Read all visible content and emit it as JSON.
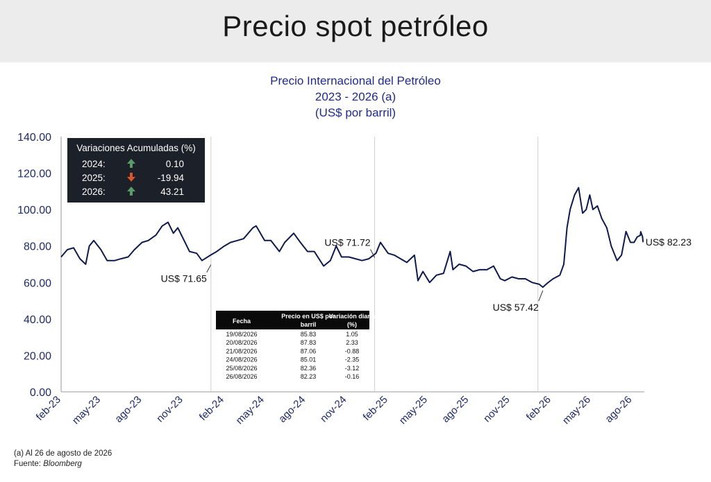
{
  "header": {
    "title": "Precio spot petróleo"
  },
  "chart_data": {
    "type": "line",
    "title": "Precio Internacional del Petróleo",
    "subtitle": "2023 - 2026 (a)",
    "ylabel": "(US$ por barril)",
    "ylim": [
      0,
      140
    ],
    "yticks": [
      "0.00",
      "20.00",
      "40.00",
      "60.00",
      "80.00",
      "100.00",
      "120.00",
      "140.00"
    ],
    "xticks": [
      "feb-23",
      "may-23",
      "ago-23",
      "nov-23",
      "feb-24",
      "may-24",
      "ago-24",
      "nov-24",
      "feb-25",
      "may-25",
      "ago-25",
      "nov-25",
      "feb-26",
      "may-26",
      "ago-26"
    ],
    "series": [
      {
        "color": "#0e1a4e",
        "points": [
          [
            "2023-02-01",
            74
          ],
          [
            "2023-02-15",
            78
          ],
          [
            "2023-03-01",
            79
          ],
          [
            "2023-03-15",
            73
          ],
          [
            "2023-03-28",
            70
          ],
          [
            "2023-04-05",
            80
          ],
          [
            "2023-04-15",
            83
          ],
          [
            "2023-05-01",
            78
          ],
          [
            "2023-05-15",
            72
          ],
          [
            "2023-06-01",
            72
          ],
          [
            "2023-06-15",
            73
          ],
          [
            "2023-07-01",
            74
          ],
          [
            "2023-07-15",
            78
          ],
          [
            "2023-08-01",
            82
          ],
          [
            "2023-08-15",
            83
          ],
          [
            "2023-09-01",
            86
          ],
          [
            "2023-09-15",
            91
          ],
          [
            "2023-09-28",
            93
          ],
          [
            "2023-10-10",
            87
          ],
          [
            "2023-10-20",
            90
          ],
          [
            "2023-11-01",
            84
          ],
          [
            "2023-11-15",
            77
          ],
          [
            "2023-12-01",
            76
          ],
          [
            "2023-12-13",
            72
          ],
          [
            "2024-01-01",
            75
          ],
          [
            "2024-01-15",
            77
          ],
          [
            "2024-02-01",
            80
          ],
          [
            "2024-02-15",
            82
          ],
          [
            "2024-03-01",
            83
          ],
          [
            "2024-03-15",
            84
          ],
          [
            "2024-04-05",
            90
          ],
          [
            "2024-04-12",
            91
          ],
          [
            "2024-05-01",
            83
          ],
          [
            "2024-05-15",
            83
          ],
          [
            "2024-06-03",
            77
          ],
          [
            "2024-06-15",
            82
          ],
          [
            "2024-07-05",
            87
          ],
          [
            "2024-07-20",
            82
          ],
          [
            "2024-08-05",
            77
          ],
          [
            "2024-08-20",
            77
          ],
          [
            "2024-09-10",
            69
          ],
          [
            "2024-09-25",
            72
          ],
          [
            "2024-10-08",
            80
          ],
          [
            "2024-10-20",
            74
          ],
          [
            "2024-11-05",
            74
          ],
          [
            "2024-11-20",
            73
          ],
          [
            "2024-12-05",
            72
          ],
          [
            "2024-12-20",
            73
          ],
          [
            "2025-01-05",
            76
          ],
          [
            "2025-01-15",
            82
          ],
          [
            "2025-02-01",
            76
          ],
          [
            "2025-02-15",
            75
          ],
          [
            "2025-03-01",
            73
          ],
          [
            "2025-03-15",
            71
          ],
          [
            "2025-04-01",
            75
          ],
          [
            "2025-04-09",
            61
          ],
          [
            "2025-04-20",
            66
          ],
          [
            "2025-05-05",
            60
          ],
          [
            "2025-05-20",
            64
          ],
          [
            "2025-06-05",
            65
          ],
          [
            "2025-06-20",
            77
          ],
          [
            "2025-06-26",
            67
          ],
          [
            "2025-07-10",
            70
          ],
          [
            "2025-07-25",
            69
          ],
          [
            "2025-08-10",
            66
          ],
          [
            "2025-08-25",
            67
          ],
          [
            "2025-09-10",
            67
          ],
          [
            "2025-09-25",
            69
          ],
          [
            "2025-10-10",
            62
          ],
          [
            "2025-10-20",
            61
          ],
          [
            "2025-11-05",
            63
          ],
          [
            "2025-11-20",
            62
          ],
          [
            "2025-12-05",
            62
          ],
          [
            "2025-12-20",
            60
          ],
          [
            "2026-01-05",
            59
          ],
          [
            "2026-01-13",
            57.42
          ],
          [
            "2026-01-25",
            60
          ],
          [
            "2026-02-05",
            62
          ],
          [
            "2026-02-20",
            64
          ],
          [
            "2026-03-01",
            70
          ],
          [
            "2026-03-08",
            90
          ],
          [
            "2026-03-15",
            100
          ],
          [
            "2026-03-25",
            108
          ],
          [
            "2026-04-03",
            112
          ],
          [
            "2026-04-12",
            98
          ],
          [
            "2026-04-20",
            100
          ],
          [
            "2026-04-28",
            108
          ],
          [
            "2026-05-05",
            100
          ],
          [
            "2026-05-15",
            102
          ],
          [
            "2026-05-25",
            95
          ],
          [
            "2026-06-05",
            90
          ],
          [
            "2026-06-15",
            80
          ],
          [
            "2026-06-28",
            72
          ],
          [
            "2026-07-08",
            75
          ],
          [
            "2026-07-18",
            88
          ],
          [
            "2026-07-28",
            82
          ],
          [
            "2026-08-05",
            82
          ],
          [
            "2026-08-12",
            85
          ],
          [
            "2026-08-19",
            85.83
          ],
          [
            "2026-08-20",
            87.83
          ],
          [
            "2026-08-21",
            87.06
          ],
          [
            "2026-08-24",
            85.01
          ],
          [
            "2026-08-25",
            82.36
          ],
          [
            "2026-08-26",
            82.23
          ]
        ]
      }
    ],
    "vlines": [
      "2024-01-02",
      "2025-01-02",
      "2026-01-02"
    ],
    "annotations": [
      {
        "label": "US$ 71.65",
        "date": "2024-01-02",
        "value": 71.65
      },
      {
        "label": "US$ 71.72",
        "date": "2025-01-02",
        "value": 71.72
      },
      {
        "label": "US$ 57.42",
        "date": "2026-01-13",
        "value": 57.42
      },
      {
        "label": "US$ 82.23",
        "date": "2026-08-26",
        "value": 82.23
      }
    ],
    "summary_box": {
      "title": "Variaciones Acumuladas (%)",
      "rows": [
        {
          "year": "2024:",
          "direction": "up",
          "value": "0.10"
        },
        {
          "year": "2025:",
          "direction": "down",
          "value": "-19.94"
        },
        {
          "year": "2026:",
          "direction": "up",
          "value": "43.21"
        }
      ],
      "colors": {
        "background": "#1b2029",
        "up": "#5b9a6a",
        "down": "#d9562b"
      }
    },
    "table": {
      "headers": [
        "Fecha",
        "Precio en US$ por barril",
        "Variación diaria (%)"
      ],
      "rows": [
        [
          "19/08/2026",
          "85.83",
          "1.05"
        ],
        [
          "20/08/2026",
          "87.83",
          "2.33"
        ],
        [
          "21/08/2026",
          "87.06",
          "-0.88"
        ],
        [
          "24/08/2026",
          "85.01",
          "-2.35"
        ],
        [
          "25/08/2026",
          "82.36",
          "-3.12"
        ],
        [
          "26/08/2026",
          "82.23",
          "-0.16"
        ]
      ]
    }
  },
  "footnotes": {
    "note": "(a) Al 26 de agosto de 2026",
    "source_label": "Fuente: ",
    "source": "Bloomberg"
  }
}
